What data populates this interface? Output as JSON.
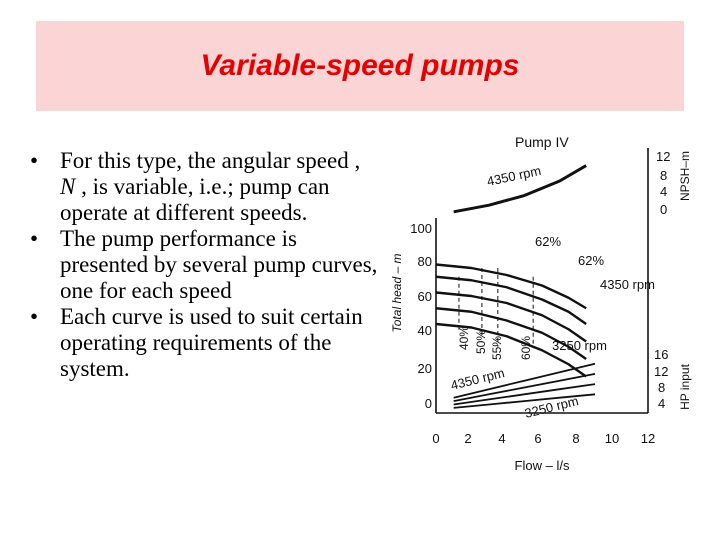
{
  "slide": {
    "title": "Variable-speed pumps",
    "bullets": [
      {
        "marker": "•",
        "parts": {
          "a": "For this type, the angular speed , ",
          "b": "N",
          "c": " , is variable, i.e.; pump can operate at different speeds."
        }
      },
      {
        "marker": "•",
        "parts": {
          "a": "The pump performance is presented by several pump curves, one for each speed",
          "b": "",
          "c": ""
        }
      },
      {
        "marker": "•",
        "parts": {
          "a": " Each curve is used to suit certain operating requirements of the system.",
          "b": "",
          "c": ""
        }
      }
    ]
  },
  "chart_data": {
    "type": "line",
    "title": "Pump IV",
    "xlabel": "Flow – l/s",
    "x_ticks": [
      "0",
      "2",
      "4",
      "6",
      "8",
      "10",
      "12"
    ],
    "xlim": [
      0,
      12
    ],
    "head_axis": {
      "label": "Total head – m",
      "ticks": [
        "0",
        "20",
        "40",
        "60",
        "80",
        "100"
      ],
      "ylim": [
        0,
        100
      ]
    },
    "npsh_axis": {
      "label": "NPSH–m",
      "ticks": [
        "12",
        "8",
        "4",
        "0"
      ]
    },
    "hp_axis": {
      "label": "HP input",
      "ticks": [
        "16",
        "12",
        "8",
        "4"
      ]
    },
    "head_series": [
      {
        "x": [
          0,
          2,
          4,
          6,
          7.5,
          8.5
        ],
        "y": [
          82,
          80,
          76,
          70,
          63,
          57
        ]
      },
      {
        "x": [
          0,
          2,
          4,
          6,
          7.5,
          8.5
        ],
        "y": [
          75,
          73,
          69,
          62,
          55,
          48
        ]
      },
      {
        "x": [
          0,
          2,
          4,
          6,
          7.5,
          8.5
        ],
        "y": [
          66,
          64,
          60,
          53,
          45,
          38
        ]
      },
      {
        "x": [
          0,
          2,
          4,
          6,
          7.5,
          8.5
        ],
        "y": [
          57,
          55,
          50,
          43,
          35,
          28
        ]
      },
      {
        "x": [
          0,
          2,
          4,
          6,
          7.5,
          8.5
        ],
        "y": [
          48,
          46,
          41,
          33,
          25,
          18
        ]
      }
    ],
    "efficiency_series": [
      {
        "label": "40%",
        "x": [
          1.3,
          1.3
        ],
        "y": [
          75,
          44
        ]
      },
      {
        "label": "50%",
        "x": [
          2.6,
          2.6
        ],
        "y": [
          80,
          40
        ]
      },
      {
        "label": "55%",
        "x": [
          3.5,
          3.5
        ],
        "y": [
          80,
          35
        ]
      },
      {
        "label": "60%",
        "x": [
          5.5,
          5.5
        ],
        "y": [
          75,
          35
        ]
      }
    ],
    "npsh_series": {
      "x": [
        1,
        3,
        5,
        7,
        8.5
      ],
      "y": [
        0.5,
        2,
        4.2,
        7.5,
        11
      ]
    },
    "hp_series": [
      {
        "x": [
          1,
          3,
          5,
          7,
          9
        ],
        "y": [
          4.5,
          7,
          9.5,
          12,
          14.5
        ]
      },
      {
        "x": [
          1,
          3,
          5,
          7,
          9
        ],
        "y": [
          3.5,
          5.5,
          7.5,
          9.5,
          11.5
        ]
      },
      {
        "x": [
          1,
          3,
          5,
          7,
          9
        ],
        "y": [
          2.5,
          4,
          5.5,
          7,
          8.5
        ]
      },
      {
        "x": [
          1,
          3,
          5,
          7,
          9
        ],
        "y": [
          1.5,
          2.5,
          3.5,
          4.5,
          5.5
        ]
      }
    ],
    "annotations": [
      "4350 rpm",
      "62%",
      "62%",
      "4350 rpm",
      "3250 rpm",
      "4350 rpm",
      "3250 rpm",
      "40%",
      "50%",
      "55%",
      "60%"
    ]
  }
}
